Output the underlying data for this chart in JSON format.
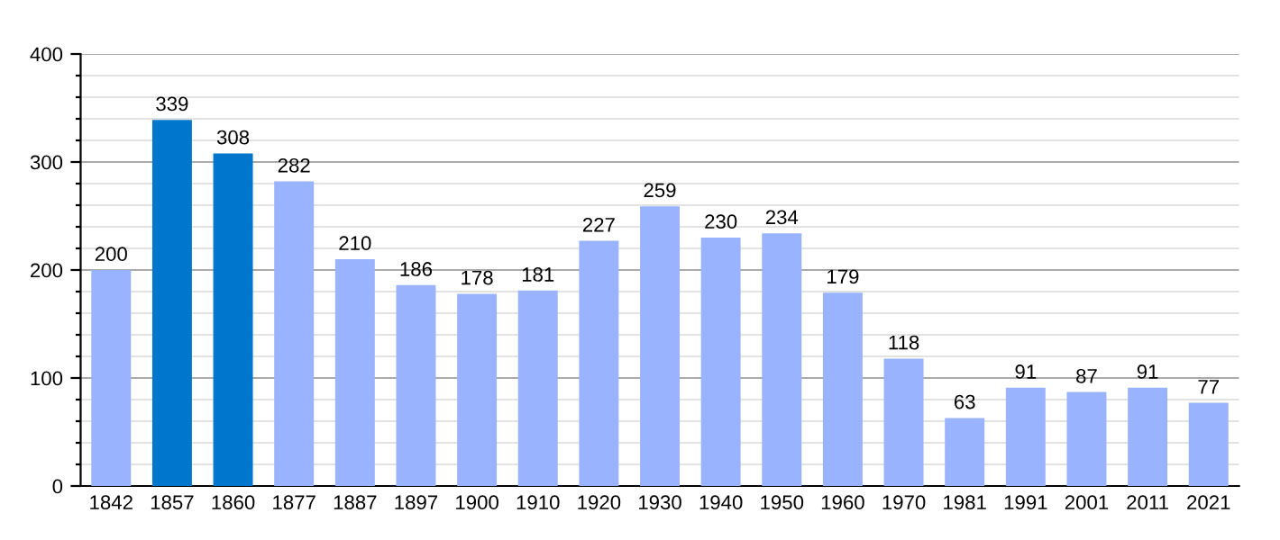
{
  "chart_data": {
    "type": "bar",
    "categories": [
      "1842",
      "1857",
      "1860",
      "1877",
      "1887",
      "1897",
      "1900",
      "1910",
      "1920",
      "1930",
      "1940",
      "1950",
      "1960",
      "1970",
      "1981",
      "1991",
      "2001",
      "2011",
      "2021"
    ],
    "values": [
      200,
      339,
      308,
      282,
      210,
      186,
      178,
      181,
      227,
      259,
      230,
      234,
      179,
      118,
      63,
      91,
      87,
      91,
      77
    ],
    "colors": [
      "#99b3ff",
      "#0077cc",
      "#0077cc",
      "#99b3ff",
      "#99b3ff",
      "#99b3ff",
      "#99b3ff",
      "#99b3ff",
      "#99b3ff",
      "#99b3ff",
      "#99b3ff",
      "#99b3ff",
      "#99b3ff",
      "#99b3ff",
      "#99b3ff",
      "#99b3ff",
      "#99b3ff",
      "#99b3ff",
      "#99b3ff"
    ],
    "ylim": [
      0,
      400
    ],
    "yticks": [
      0,
      {
        "value": 20,
        "label": null
      },
      {
        "value": 40,
        "label": null
      },
      {
        "value": 60,
        "label": null
      },
      {
        "value": 80,
        "label": null
      },
      100,
      {
        "value": 120,
        "label": null
      },
      {
        "value": 140,
        "label": null
      },
      {
        "value": 160,
        "label": null
      },
      {
        "value": 180,
        "label": null
      },
      200,
      {
        "value": 220,
        "label": null
      },
      {
        "value": 240,
        "label": null
      },
      {
        "value": 260,
        "label": null
      },
      {
        "value": 280,
        "label": null
      },
      300,
      {
        "value": 320,
        "label": null
      },
      {
        "value": 340,
        "label": null
      },
      {
        "value": 360,
        "label": null
      },
      {
        "value": 380,
        "label": null
      },
      400
    ],
    "grid": "y",
    "data_labels": true,
    "legend": false
  }
}
